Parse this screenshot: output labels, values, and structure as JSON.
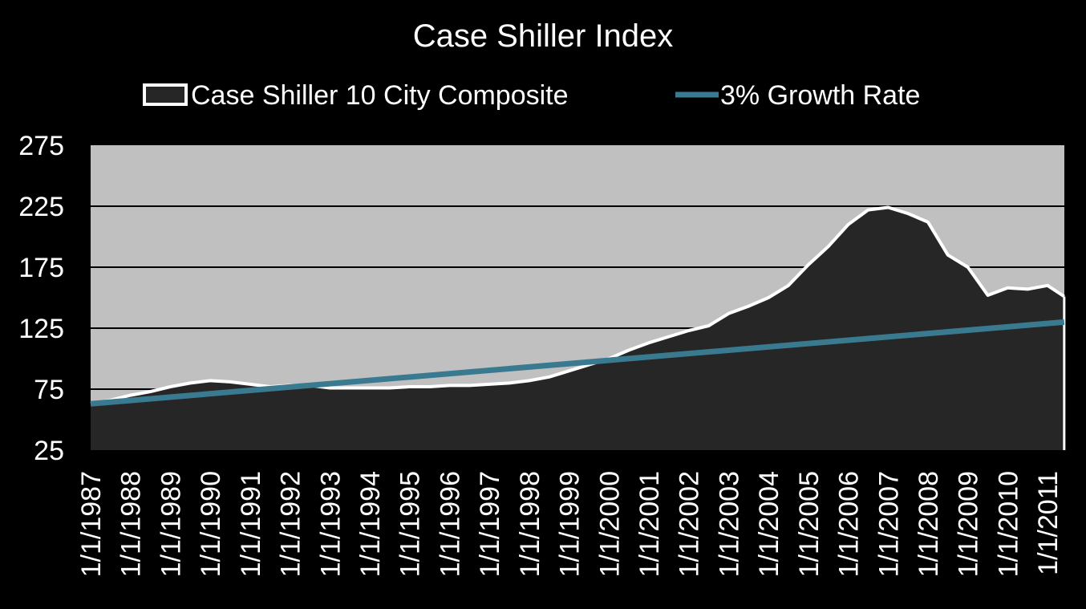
{
  "chart_data": {
    "type": "area",
    "title": "Case Shiller Index",
    "xlabel": "",
    "ylabel": "",
    "ylim": [
      25,
      275
    ],
    "yticks": [
      25,
      75,
      125,
      175,
      225,
      275
    ],
    "grid": true,
    "legend_position": "top",
    "x_tick_labels": [
      "1/1/1987",
      "1/1/1988",
      "1/1/1989",
      "1/1/1990",
      "1/1/1991",
      "1/1/1992",
      "1/1/1993",
      "1/1/1994",
      "1/1/1995",
      "1/1/1996",
      "1/1/1997",
      "1/1/1998",
      "1/1/1999",
      "1/1/2000",
      "1/1/2001",
      "1/1/2002",
      "1/1/2003",
      "1/1/2004",
      "1/1/2005",
      "1/1/2006",
      "1/1/2007",
      "1/1/2008",
      "1/1/2009",
      "1/1/2010",
      "1/1/2011"
    ],
    "colors": {
      "background": "#000000",
      "plot_area": "#c0c0c0",
      "area_fill": "#262626",
      "area_stroke": "#ffffff",
      "growth_line": "#3a7a90",
      "gridline": "#000000",
      "text": "#ffffff"
    },
    "series": [
      {
        "name": "Case Shiller 10 City Composite",
        "type": "area",
        "x": [
          "1987-01",
          "1987-07",
          "1988-01",
          "1988-07",
          "1989-01",
          "1989-07",
          "1990-01",
          "1990-07",
          "1991-01",
          "1991-07",
          "1992-01",
          "1992-07",
          "1993-01",
          "1993-07",
          "1994-01",
          "1994-07",
          "1995-01",
          "1995-07",
          "1996-01",
          "1996-07",
          "1997-01",
          "1997-07",
          "1998-01",
          "1998-07",
          "1999-01",
          "1999-07",
          "2000-01",
          "2000-07",
          "2001-01",
          "2001-07",
          "2002-01",
          "2002-07",
          "2003-01",
          "2003-07",
          "2004-01",
          "2004-07",
          "2005-01",
          "2005-07",
          "2006-01",
          "2006-07",
          "2007-01",
          "2007-07",
          "2008-01",
          "2008-07",
          "2009-01",
          "2009-07",
          "2010-01",
          "2010-07",
          "2011-01",
          "2011-06"
        ],
        "values": [
          63,
          66,
          70,
          73,
          77,
          80,
          82,
          81,
          79,
          77,
          78,
          78,
          76,
          76,
          76,
          76,
          77,
          77,
          78,
          78,
          79,
          80,
          82,
          85,
          90,
          95,
          100,
          107,
          113,
          118,
          123,
          127,
          137,
          143,
          150,
          160,
          177,
          192,
          210,
          222,
          224,
          219,
          212,
          185,
          175,
          152,
          158,
          157,
          160,
          151
        ]
      },
      {
        "name": "3% Growth Rate",
        "type": "line",
        "x": [
          "1987-01",
          "2011-06"
        ],
        "values": [
          63,
          130
        ]
      }
    ]
  }
}
